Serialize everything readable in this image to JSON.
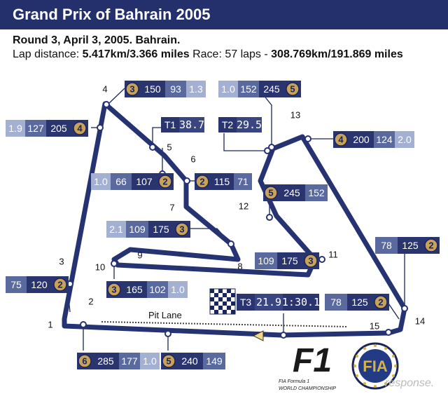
{
  "header": {
    "title": "Grand Prix of Bahrain 2005",
    "round_line": "Round 3, April 3, 2005. Bahrain.",
    "lap_label": "Lap distance: ",
    "lap_value": "5.417km/3.366 miles",
    "race_label": " Race: 57 laps - ",
    "race_value": "308.769km/191.869 miles"
  },
  "colors": {
    "header_bg": "#23306b",
    "dark_box": "#2a3570",
    "mid_box": "#5a6a9e",
    "light_box": "#a4b0d2",
    "gear_gold": "#c9a25a",
    "track": "#263372"
  },
  "turns": [
    "1",
    "2",
    "3",
    "4",
    "5",
    "6",
    "7",
    "8",
    "9",
    "10",
    "11",
    "12",
    "13",
    "14",
    "15"
  ],
  "pit_lane_label": "Pit Lane",
  "callouts": [
    {
      "id": "t4",
      "cells": [
        "3",
        "150",
        "93",
        "1.3"
      ]
    },
    {
      "id": "t3a",
      "cells": [
        "1.9",
        "127",
        "205",
        "4"
      ]
    },
    {
      "id": "t5",
      "cells": [
        "1.0",
        "66",
        "107",
        "2"
      ]
    },
    {
      "id": "t6",
      "cells": [
        "2",
        "115",
        "71"
      ]
    },
    {
      "id": "t7",
      "cells": [
        "2.1",
        "109",
        "175",
        "3"
      ]
    },
    {
      "id": "t10",
      "cells": [
        "3",
        "165",
        "102",
        "1.0"
      ]
    },
    {
      "id": "t3b",
      "cells": [
        "75",
        "120",
        "2"
      ]
    },
    {
      "id": "s1",
      "cells": [
        "6",
        "285",
        "177",
        "1.0"
      ]
    },
    {
      "id": "s2",
      "cells": [
        "5",
        "240",
        "149"
      ]
    },
    {
      "id": "t12a",
      "cells": [
        "1.0",
        "152",
        "245",
        "5"
      ]
    },
    {
      "id": "t13",
      "cells": [
        "4",
        "200",
        "124",
        "2.0"
      ]
    },
    {
      "id": "t12b",
      "cells": [
        "5",
        "245",
        "152"
      ]
    },
    {
      "id": "t11",
      "cells": [
        "109",
        "175",
        "3"
      ]
    },
    {
      "id": "t14a",
      "cells": [
        "78",
        "125",
        "2"
      ]
    },
    {
      "id": "t14b",
      "cells": [
        "78",
        "125",
        "2"
      ]
    }
  ],
  "timing": [
    {
      "label": "T1",
      "value": "38.7"
    },
    {
      "label": "T2",
      "value": "29.5"
    },
    {
      "label": "T3",
      "value": "21.9",
      "lap": "1:30.1"
    }
  ],
  "logos": {
    "f1_text": "F1",
    "f1_sub1": "FIA Formula 1",
    "f1_sub2": "WORLD CHAMPIONSHIP",
    "fia_text": "FIA",
    "watermark": "response."
  }
}
